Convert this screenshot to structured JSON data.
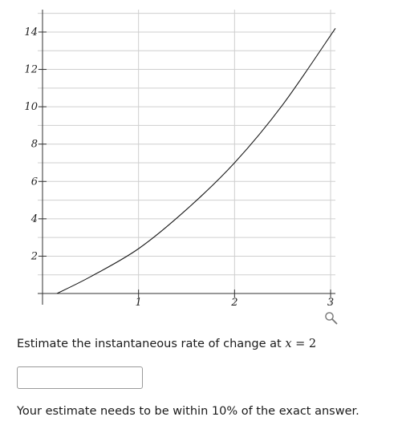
{
  "chart_data": {
    "type": "line",
    "xlim": [
      -0.05,
      3.05
    ],
    "ylim": [
      -0.6,
      15.2
    ],
    "x_ticks": [
      1,
      2,
      3
    ],
    "x_tick_labels": [
      "1",
      "2",
      "3"
    ],
    "y_ticks": [
      2,
      4,
      6,
      8,
      10,
      12,
      14
    ],
    "y_tick_labels": [
      "2",
      "4",
      "6",
      "8",
      "10",
      "12",
      "14"
    ],
    "grid": true,
    "minor_y_step": 1,
    "series": [
      {
        "x": [
          0.15,
          0.5,
          1.0,
          1.5,
          2.0,
          2.5,
          3.05
        ],
        "y": [
          0.0,
          0.9,
          2.4,
          4.5,
          7.0,
          10.1,
          14.2
        ]
      }
    ],
    "curve_color": "#1a1a1a",
    "grid_color": "#cfcfcf"
  },
  "question": {
    "prompt_text": "Estimate the instantaneous rate of change at ",
    "math_var": "x",
    "math_eq": " = 2",
    "answer_value": "",
    "note": "Your estimate needs to be within 10% of the exact answer."
  },
  "icons": {
    "zoom": "magnifier-icon"
  }
}
